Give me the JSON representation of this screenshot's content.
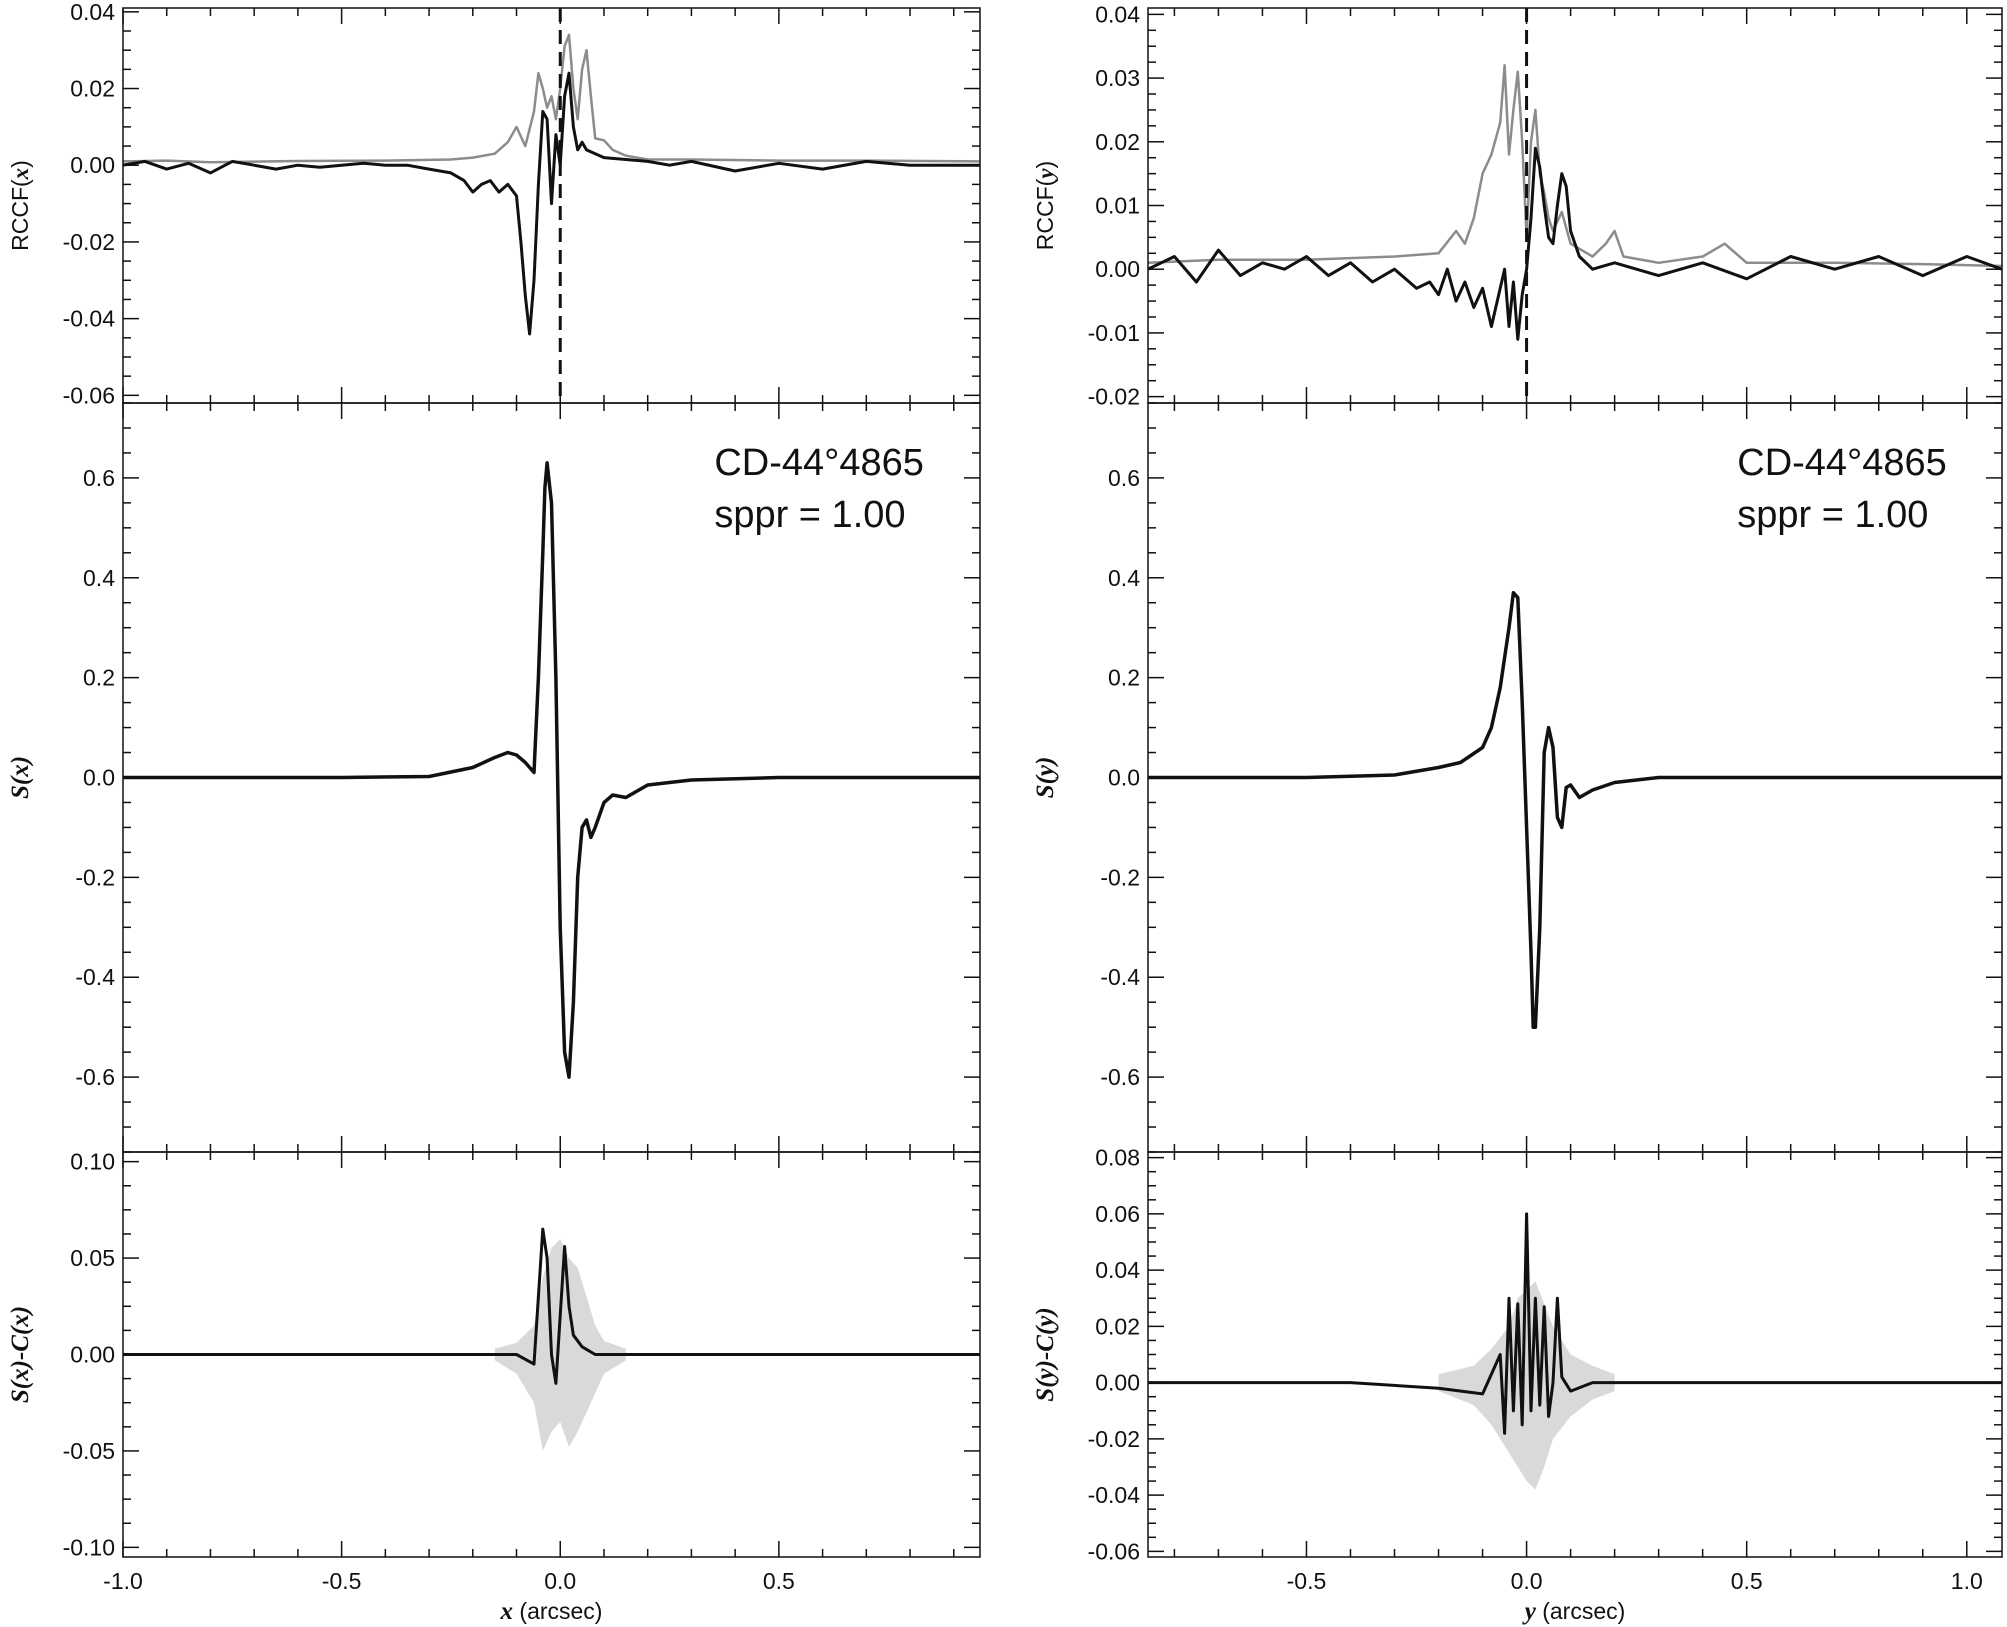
{
  "chart_data": [
    {
      "id": "left",
      "type": "line",
      "xlabel_var": "x",
      "xlabel_unit": " (arcsec)",
      "xlim": [
        -1.0,
        0.96
      ],
      "xticks": [
        -1.0,
        -0.5,
        0.0,
        0.5
      ],
      "xtick_labels": [
        "-1.0",
        "-0.5",
        "0.0",
        "0.5"
      ],
      "panels": [
        {
          "name": "rccf",
          "ylabel": "RCCF(x)",
          "ylim": [
            -0.062,
            0.041
          ],
          "yticks": [
            -0.06,
            -0.04,
            -0.02,
            0.0,
            0.02,
            0.04
          ],
          "ytick_labels": [
            "-0.06",
            "-0.04",
            "-0.02",
            "0.00",
            "0.02",
            "0.04"
          ],
          "vline": 0.0,
          "series": [
            {
              "color": "#8c8c8c",
              "width": 2.5,
              "x": [
                -1.0,
                -0.9,
                -0.8,
                -0.6,
                -0.4,
                -0.25,
                -0.2,
                -0.15,
                -0.12,
                -0.1,
                -0.08,
                -0.06,
                -0.05,
                -0.04,
                -0.03,
                -0.02,
                -0.01,
                0.0,
                0.01,
                0.02,
                0.03,
                0.04,
                0.05,
                0.06,
                0.07,
                0.08,
                0.1,
                0.12,
                0.15,
                0.2,
                0.3,
                0.5,
                0.7,
                0.96
              ],
              "y": [
                0.001,
                0.0012,
                0.0008,
                0.0011,
                0.0012,
                0.0015,
                0.002,
                0.003,
                0.006,
                0.01,
                0.005,
                0.014,
                0.024,
                0.02,
                0.015,
                0.018,
                0.012,
                0.02,
                0.031,
                0.034,
                0.02,
                0.012,
                0.025,
                0.03,
                0.018,
                0.007,
                0.0065,
                0.004,
                0.0025,
                0.0015,
                0.0015,
                0.0012,
                0.0012,
                0.001
              ]
            },
            {
              "color": "#111111",
              "width": 3,
              "x": [
                -1.0,
                -0.95,
                -0.9,
                -0.85,
                -0.8,
                -0.75,
                -0.7,
                -0.65,
                -0.6,
                -0.55,
                -0.5,
                -0.45,
                -0.4,
                -0.35,
                -0.3,
                -0.25,
                -0.22,
                -0.2,
                -0.18,
                -0.16,
                -0.14,
                -0.12,
                -0.1,
                -0.09,
                -0.08,
                -0.07,
                -0.06,
                -0.05,
                -0.04,
                -0.03,
                -0.02,
                -0.01,
                0.0,
                0.01,
                0.02,
                0.03,
                0.04,
                0.05,
                0.06,
                0.08,
                0.1,
                0.15,
                0.2,
                0.25,
                0.3,
                0.4,
                0.5,
                0.6,
                0.7,
                0.8,
                0.96
              ],
              "y": [
                0.0,
                0.001,
                -0.001,
                0.0005,
                -0.002,
                0.001,
                0.0,
                -0.001,
                0.0,
                -0.0005,
                0.0,
                0.0005,
                0.0,
                0.0,
                -0.001,
                -0.002,
                -0.004,
                -0.007,
                -0.005,
                -0.004,
                -0.007,
                -0.005,
                -0.008,
                -0.02,
                -0.034,
                -0.044,
                -0.03,
                -0.005,
                0.014,
                0.012,
                -0.01,
                0.008,
                0.0,
                0.018,
                0.024,
                0.01,
                0.004,
                0.006,
                0.004,
                0.003,
                0.002,
                0.0015,
                0.001,
                0.0,
                0.001,
                -0.0015,
                0.0005,
                -0.001,
                0.001,
                0.0,
                0.0
              ]
            }
          ]
        },
        {
          "name": "s",
          "ylabel": "S(x)",
          "ylim": [
            -0.75,
            0.75
          ],
          "yticks": [
            -0.6,
            -0.4,
            -0.2,
            0.0,
            0.2,
            0.4,
            0.6
          ],
          "ytick_labels": [
            "-0.6",
            "-0.4",
            "-0.2",
            "0.0",
            "0.2",
            "0.4",
            "0.6"
          ],
          "annotation_line1": "CD-44°4865",
          "annotation_line2": "sppr = 1.00",
          "series": [
            {
              "color": "#111111",
              "width": 3.5,
              "x": [
                -1.0,
                -0.5,
                -0.3,
                -0.2,
                -0.15,
                -0.12,
                -0.1,
                -0.08,
                -0.06,
                -0.05,
                -0.04,
                -0.035,
                -0.03,
                -0.02,
                -0.01,
                0.0,
                0.01,
                0.02,
                0.03,
                0.04,
                0.05,
                0.06,
                0.07,
                0.08,
                0.1,
                0.12,
                0.15,
                0.2,
                0.3,
                0.5,
                0.96
              ],
              "y": [
                0.0,
                0.0,
                0.002,
                0.02,
                0.04,
                0.05,
                0.045,
                0.03,
                0.01,
                0.2,
                0.45,
                0.58,
                0.63,
                0.55,
                0.2,
                -0.3,
                -0.55,
                -0.6,
                -0.45,
                -0.2,
                -0.1,
                -0.085,
                -0.12,
                -0.1,
                -0.05,
                -0.035,
                -0.04,
                -0.015,
                -0.005,
                0.0,
                0.0
              ]
            }
          ]
        },
        {
          "name": "resid",
          "ylabel": "S(x)-C(x)",
          "ylim": [
            -0.105,
            0.105
          ],
          "yticks": [
            -0.1,
            -0.05,
            0.0,
            0.05,
            0.1
          ],
          "ytick_labels": [
            "-0.10",
            "-0.05",
            "0.00",
            "0.05",
            "0.10"
          ],
          "band": {
            "color": "#d9d9d9",
            "x": [
              -0.15,
              -0.1,
              -0.06,
              -0.04,
              -0.02,
              0.0,
              0.02,
              0.04,
              0.06,
              0.08,
              0.1,
              0.15
            ],
            "upper": [
              0.003,
              0.006,
              0.015,
              0.04,
              0.055,
              0.06,
              0.05,
              0.045,
              0.03,
              0.015,
              0.007,
              0.003
            ],
            "lower": [
              -0.003,
              -0.01,
              -0.025,
              -0.05,
              -0.04,
              -0.035,
              -0.048,
              -0.04,
              -0.03,
              -0.02,
              -0.01,
              -0.003
            ]
          },
          "series": [
            {
              "color": "#111111",
              "width": 3,
              "x": [
                -1.0,
                -0.8,
                -0.6,
                -0.4,
                -0.2,
                -0.1,
                -0.06,
                -0.05,
                -0.04,
                -0.03,
                -0.02,
                -0.01,
                0.0,
                0.01,
                0.02,
                0.03,
                0.05,
                0.08,
                0.1,
                0.2,
                0.4,
                0.6,
                0.8,
                0.96
              ],
              "y": [
                0.0,
                0.0,
                0.0,
                0.0,
                0.0,
                0.0,
                -0.005,
                0.03,
                0.065,
                0.05,
                0.0,
                -0.015,
                0.02,
                0.056,
                0.025,
                0.01,
                0.004,
                0.0,
                0.0,
                0.0,
                0.0,
                0.0,
                0.0,
                0.0
              ]
            }
          ]
        }
      ]
    },
    {
      "id": "right",
      "type": "line",
      "xlabel_var": "y",
      "xlabel_unit": " (arcsec)",
      "xlim": [
        -0.86,
        1.08
      ],
      "xticks": [
        -0.5,
        0.0,
        0.5,
        1.0
      ],
      "xtick_labels": [
        "-0.5",
        "0.0",
        "0.5",
        "1.0"
      ],
      "panels": [
        {
          "name": "rccf",
          "ylabel": "RCCF(y)",
          "ylim": [
            -0.021,
            0.041
          ],
          "yticks": [
            -0.02,
            -0.01,
            0.0,
            0.01,
            0.02,
            0.03,
            0.04
          ],
          "ytick_labels": [
            "-0.02",
            "-0.01",
            "0.00",
            "0.01",
            "0.02",
            "0.03",
            "0.04"
          ],
          "vline": 0.0,
          "series": [
            {
              "color": "#8c8c8c",
              "width": 2.5,
              "x": [
                -0.86,
                -0.7,
                -0.5,
                -0.3,
                -0.2,
                -0.16,
                -0.14,
                -0.12,
                -0.1,
                -0.08,
                -0.06,
                -0.05,
                -0.04,
                -0.03,
                -0.02,
                -0.01,
                0.0,
                0.01,
                0.02,
                0.03,
                0.04,
                0.05,
                0.06,
                0.08,
                0.1,
                0.15,
                0.18,
                0.2,
                0.22,
                0.3,
                0.4,
                0.45,
                0.5,
                0.7,
                0.9,
                1.08
              ],
              "y": [
                0.001,
                0.0015,
                0.0015,
                0.002,
                0.0025,
                0.006,
                0.004,
                0.008,
                0.015,
                0.018,
                0.023,
                0.032,
                0.018,
                0.025,
                0.031,
                0.02,
                0.005,
                0.02,
                0.025,
                0.015,
                0.012,
                0.008,
                0.006,
                0.009,
                0.004,
                0.002,
                0.004,
                0.006,
                0.002,
                0.001,
                0.002,
                0.004,
                0.001,
                0.001,
                0.0008,
                0.0005
              ]
            },
            {
              "color": "#111111",
              "width": 3,
              "x": [
                -0.86,
                -0.8,
                -0.75,
                -0.7,
                -0.65,
                -0.6,
                -0.55,
                -0.5,
                -0.45,
                -0.4,
                -0.35,
                -0.3,
                -0.25,
                -0.22,
                -0.2,
                -0.18,
                -0.16,
                -0.14,
                -0.12,
                -0.1,
                -0.08,
                -0.06,
                -0.05,
                -0.04,
                -0.03,
                -0.02,
                -0.01,
                0.0,
                0.01,
                0.02,
                0.03,
                0.04,
                0.05,
                0.06,
                0.07,
                0.08,
                0.09,
                0.1,
                0.12,
                0.15,
                0.2,
                0.3,
                0.4,
                0.5,
                0.6,
                0.7,
                0.8,
                0.9,
                1.0,
                1.08
              ],
              "y": [
                0.0,
                0.002,
                -0.002,
                0.003,
                -0.001,
                0.001,
                0.0,
                0.002,
                -0.001,
                0.001,
                -0.002,
                0.0,
                -0.003,
                -0.002,
                -0.004,
                0.0,
                -0.005,
                -0.002,
                -0.006,
                -0.003,
                -0.009,
                -0.003,
                0.0,
                -0.009,
                -0.002,
                -0.011,
                -0.004,
                0.0,
                0.008,
                0.019,
                0.016,
                0.01,
                0.005,
                0.004,
                0.01,
                0.015,
                0.013,
                0.006,
                0.002,
                0.0,
                0.001,
                -0.001,
                0.001,
                -0.0015,
                0.002,
                0.0,
                0.002,
                -0.001,
                0.002,
                0.0
              ]
            }
          ]
        },
        {
          "name": "s",
          "ylabel": "S(y)",
          "ylim": [
            -0.75,
            0.75
          ],
          "yticks": [
            -0.6,
            -0.4,
            -0.2,
            0.0,
            0.2,
            0.4,
            0.6
          ],
          "ytick_labels": [
            "-0.6",
            "-0.4",
            "-0.2",
            "0.0",
            "0.2",
            "0.4",
            "0.6"
          ],
          "annotation_line1": "CD-44°4865",
          "annotation_line2": "sppr = 1.00",
          "series": [
            {
              "color": "#111111",
              "width": 3.5,
              "x": [
                -0.86,
                -0.5,
                -0.3,
                -0.2,
                -0.15,
                -0.1,
                -0.08,
                -0.06,
                -0.04,
                -0.03,
                -0.02,
                -0.01,
                0.0,
                0.01,
                0.015,
                0.02,
                0.03,
                0.04,
                0.05,
                0.06,
                0.07,
                0.08,
                0.09,
                0.1,
                0.12,
                0.15,
                0.2,
                0.3,
                0.5,
                1.08
              ],
              "y": [
                0.0,
                0.0,
                0.005,
                0.02,
                0.03,
                0.06,
                0.1,
                0.18,
                0.3,
                0.37,
                0.36,
                0.15,
                -0.1,
                -0.35,
                -0.5,
                -0.5,
                -0.3,
                0.05,
                0.1,
                0.06,
                -0.08,
                -0.1,
                -0.02,
                -0.015,
                -0.04,
                -0.025,
                -0.01,
                0.0,
                0.0,
                0.0
              ]
            }
          ]
        },
        {
          "name": "resid",
          "ylabel": "S(y)-C(y)",
          "ylim": [
            -0.062,
            0.082
          ],
          "yticks": [
            -0.06,
            -0.04,
            -0.02,
            0.0,
            0.02,
            0.04,
            0.06,
            0.08
          ],
          "ytick_labels": [
            "-0.06",
            "-0.04",
            "-0.02",
            "0.00",
            "0.02",
            "0.04",
            "0.06",
            "0.08"
          ],
          "band": {
            "color": "#d9d9d9",
            "x": [
              -0.2,
              -0.12,
              -0.08,
              -0.04,
              -0.02,
              0.0,
              0.02,
              0.04,
              0.06,
              0.1,
              0.15,
              0.2
            ],
            "upper": [
              0.003,
              0.006,
              0.012,
              0.02,
              0.03,
              0.033,
              0.036,
              0.028,
              0.02,
              0.01,
              0.006,
              0.003
            ],
            "lower": [
              -0.003,
              -0.008,
              -0.015,
              -0.025,
              -0.03,
              -0.035,
              -0.038,
              -0.03,
              -0.02,
              -0.012,
              -0.006,
              -0.003
            ]
          },
          "series": [
            {
              "color": "#111111",
              "width": 3,
              "x": [
                -0.86,
                -0.6,
                -0.4,
                -0.2,
                -0.1,
                -0.06,
                -0.05,
                -0.04,
                -0.03,
                -0.02,
                -0.01,
                0.0,
                0.01,
                0.02,
                0.03,
                0.04,
                0.05,
                0.06,
                0.07,
                0.08,
                0.1,
                0.15,
                0.3,
                0.6,
                0.9,
                1.08
              ],
              "y": [
                0.0,
                0.0,
                0.0,
                -0.002,
                -0.004,
                0.01,
                -0.018,
                0.03,
                -0.01,
                0.028,
                -0.015,
                0.06,
                -0.01,
                0.03,
                -0.008,
                0.027,
                -0.012,
                0.0,
                0.03,
                0.002,
                -0.003,
                0.0,
                0.0,
                0.0,
                0.0,
                0.0
              ]
            }
          ]
        }
      ]
    }
  ]
}
